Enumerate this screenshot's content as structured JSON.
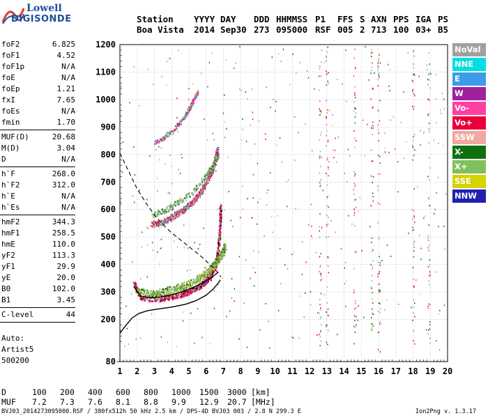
{
  "logo": {
    "brand": "Lowell",
    "product": "DIGISONDE"
  },
  "header": {
    "labels": [
      "Station",
      "YYYY",
      "DAY",
      "DDD",
      "HHMMSS",
      "P1",
      "FFS",
      "S",
      "AXN",
      "PPS",
      "IGA",
      "PS"
    ],
    "values": [
      "Boa Vista",
      "2014",
      "Sep30",
      "273",
      "095000",
      "RSF",
      "005",
      "2",
      "713",
      "100",
      "03+",
      "B5"
    ]
  },
  "params": [
    {
      "label": "foF2",
      "value": "6.825"
    },
    {
      "label": "foF1",
      "value": "4.52"
    },
    {
      "label": "foF1p",
      "value": "N/A"
    },
    {
      "label": "foE",
      "value": "N/A"
    },
    {
      "label": "foEp",
      "value": "1.21"
    },
    {
      "label": "fxI",
      "value": "7.65"
    },
    {
      "label": "foEs",
      "value": "N/A"
    },
    {
      "label": "fmin",
      "value": "1.70"
    },
    {
      "sep": true
    },
    {
      "label": "MUF(D)",
      "value": "20.68"
    },
    {
      "label": "M(D)",
      "value": "3.04"
    },
    {
      "label": "D",
      "value": "N/A"
    },
    {
      "sep": true
    },
    {
      "label": "h`F",
      "value": "268.0"
    },
    {
      "label": "h`F2",
      "value": "312.0"
    },
    {
      "label": "h`E",
      "value": "N/A"
    },
    {
      "label": "h`Es",
      "value": "N/A"
    },
    {
      "sep": true
    },
    {
      "label": "hmF2",
      "value": "344.3"
    },
    {
      "label": "hmF1",
      "value": "258.5"
    },
    {
      "label": "hmE",
      "value": "110.0"
    },
    {
      "label": "yF2",
      "value": "113.3"
    },
    {
      "label": "yF1",
      "value": "29.9"
    },
    {
      "label": "yE",
      "value": "20.0"
    },
    {
      "label": "B0",
      "value": "102.0"
    },
    {
      "label": "B1",
      "value": "3.45"
    },
    {
      "sep": true
    },
    {
      "label": "C-level",
      "value": "44"
    },
    {
      "sep": true
    }
  ],
  "auto": {
    "line1": "Auto:",
    "line2": "Artist5",
    "line3": "500200"
  },
  "legend": [
    {
      "label": "NoVal",
      "color": "#a0a0a0"
    },
    {
      "label": "NNE",
      "color": "#00e0e0"
    },
    {
      "label": "E",
      "color": "#3d9be9"
    },
    {
      "label": "W",
      "color": "#a020a0"
    },
    {
      "label": "Vo-",
      "color": "#ff40a0"
    },
    {
      "label": "Vo+",
      "color": "#e8003c"
    },
    {
      "label": "SSW",
      "color": "#f0a8a0"
    },
    {
      "label": "X-",
      "color": "#107010"
    },
    {
      "label": "X+",
      "color": "#80c060"
    },
    {
      "label": "SSE",
      "color": "#d4d400"
    },
    {
      "label": "NNW",
      "color": "#2020b0"
    }
  ],
  "chart_data": {
    "type": "scatter",
    "x_ticks": [
      1,
      2,
      3,
      4,
      5,
      6,
      7,
      8,
      9,
      10,
      11,
      12,
      13,
      14,
      15,
      16,
      17,
      18,
      19,
      20
    ],
    "y_ticks": [
      80,
      100,
      200,
      300,
      400,
      500,
      600,
      700,
      800,
      900,
      1000,
      1100,
      1200
    ],
    "xlim": [
      1,
      20
    ],
    "ylim": [
      80,
      1200
    ],
    "grid": true,
    "profile_solid": [
      [
        1.0,
        150
      ],
      [
        1.3,
        175
      ],
      [
        1.7,
        205
      ],
      [
        2.1,
        222
      ],
      [
        2.6,
        232
      ],
      [
        3.2,
        238
      ],
      [
        4.0,
        245
      ],
      [
        4.8,
        255
      ],
      [
        5.4,
        268
      ],
      [
        6.0,
        288
      ],
      [
        6.4,
        310
      ],
      [
        6.7,
        332
      ],
      [
        6.825,
        344
      ]
    ],
    "trace_dashed": [
      [
        1.0,
        805
      ],
      [
        1.5,
        740
      ],
      [
        2.0,
        675
      ],
      [
        2.5,
        625
      ],
      [
        3.0,
        580
      ],
      [
        3.5,
        545
      ],
      [
        4.0,
        515
      ],
      [
        4.6,
        485
      ],
      [
        5.2,
        455
      ],
      [
        5.8,
        425
      ],
      [
        6.3,
        395
      ],
      [
        6.7,
        370
      ],
      [
        6.85,
        355
      ]
    ],
    "trace_black": [
      [
        1.8,
        320
      ],
      [
        2.2,
        285
      ],
      [
        2.8,
        278
      ],
      [
        3.5,
        283
      ],
      [
        4.2,
        293
      ],
      [
        4.8,
        305
      ],
      [
        5.3,
        318
      ],
      [
        5.8,
        333
      ],
      [
        6.2,
        348
      ],
      [
        6.5,
        362
      ],
      [
        6.7,
        372
      ]
    ],
    "o_trace_1": [
      [
        1.8,
        330
      ],
      [
        2.2,
        283
      ],
      [
        3.0,
        276
      ],
      [
        3.8,
        282
      ],
      [
        4.5,
        292
      ],
      [
        5.0,
        304
      ],
      [
        5.5,
        318
      ],
      [
        5.9,
        336
      ],
      [
        6.2,
        356
      ],
      [
        6.4,
        378
      ],
      [
        6.55,
        400
      ],
      [
        6.65,
        440
      ],
      [
        6.75,
        500
      ],
      [
        6.8,
        560
      ],
      [
        6.82,
        620
      ]
    ],
    "o_trace_2": [
      [
        2.8,
        548
      ],
      [
        3.3,
        552
      ],
      [
        3.8,
        565
      ],
      [
        4.3,
        585
      ],
      [
        4.8,
        608
      ],
      [
        5.3,
        635
      ],
      [
        5.7,
        665
      ],
      [
        6.0,
        700
      ],
      [
        6.3,
        740
      ],
      [
        6.5,
        780
      ],
      [
        6.65,
        820
      ]
    ],
    "o_trace_3": [
      [
        3.0,
        845
      ],
      [
        3.5,
        862
      ],
      [
        4.0,
        885
      ],
      [
        4.4,
        912
      ],
      [
        4.8,
        945
      ],
      [
        5.1,
        980
      ],
      [
        5.35,
        1010
      ],
      [
        5.5,
        1030
      ]
    ],
    "x_trace_1": [
      [
        2.0,
        305
      ],
      [
        2.6,
        296
      ],
      [
        3.3,
        300
      ],
      [
        4.0,
        310
      ],
      [
        4.6,
        322
      ],
      [
        5.2,
        338
      ],
      [
        5.7,
        356
      ],
      [
        6.1,
        376
      ],
      [
        6.4,
        398
      ],
      [
        6.7,
        420
      ],
      [
        6.95,
        445
      ],
      [
        7.1,
        470
      ]
    ],
    "x_trace_2": [
      [
        2.8,
        580
      ],
      [
        3.5,
        595
      ],
      [
        4.2,
        620
      ],
      [
        4.9,
        650
      ],
      [
        5.5,
        685
      ],
      [
        6.0,
        725
      ],
      [
        6.4,
        765
      ],
      [
        6.7,
        800
      ]
    ]
  },
  "footer": {
    "d_label": "D",
    "d_values": [
      "100",
      "200",
      "400",
      "600",
      "800",
      "1000",
      "1500",
      "3000",
      "[km]"
    ],
    "muf_label": "MUF",
    "muf_values": [
      "7.2",
      "7.3",
      "7.6",
      "8.1",
      "8.8",
      "9.9",
      "12.9",
      "20.7",
      "[MHz]"
    ],
    "file_info": "BVJ03_2014273095000.RSF / 380fx512h 50 kHz 2.5 km / DPS-4D BVJ03 003 / 2.8 N 299.3 E",
    "version": "Ion2Png v. 1.3.17"
  }
}
